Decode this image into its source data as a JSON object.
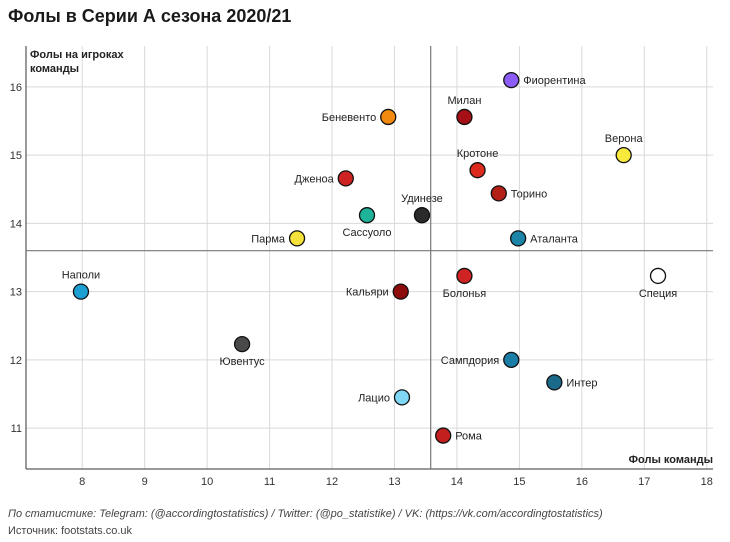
{
  "title": "Фолы в Серии А сезона 2020/21",
  "footnote": "По статистике: Telegram: (@accordingtostatistics) / Twitter: (@po_statistike) / VK: (https://vk.com/accordingtostatistics)",
  "source": "Источник: footstats.co.uk",
  "chart_data": {
    "type": "scatter",
    "title": "Фолы в Серии А сезона 2020/21",
    "xlabel": "Фолы команды",
    "ylabel_lines": [
      "Фолы на игроках",
      "команды"
    ],
    "xlim": [
      7.1,
      18.1
    ],
    "ylim": [
      10.4,
      16.6
    ],
    "xticks": [
      8,
      9,
      10,
      11,
      12,
      13,
      14,
      15,
      16,
      17,
      18
    ],
    "yticks": [
      11,
      12,
      13,
      14,
      15,
      16
    ],
    "xref": 13.58,
    "yref": 13.6,
    "grid": true,
    "points": [
      {
        "team": "Фиорентина",
        "x": 14.87,
        "y": 16.1,
        "color": "#8b5cf6",
        "label_pos": "right"
      },
      {
        "team": "Милан",
        "x": 14.12,
        "y": 15.56,
        "color": "#a50f15",
        "label_pos": "top"
      },
      {
        "team": "Беневенто",
        "x": 12.9,
        "y": 15.56,
        "color": "#f28a0f",
        "label_pos": "left"
      },
      {
        "team": "Верона",
        "x": 16.67,
        "y": 15.0,
        "color": "#f7ea3c",
        "label_pos": "top"
      },
      {
        "team": "Кротоне",
        "x": 14.33,
        "y": 14.78,
        "color": "#dc2a1f",
        "label_pos": "top"
      },
      {
        "team": "Дженоа",
        "x": 12.22,
        "y": 14.66,
        "color": "#cf2323",
        "label_pos": "left"
      },
      {
        "team": "Торино",
        "x": 14.67,
        "y": 14.44,
        "color": "#b32016",
        "label_pos": "right"
      },
      {
        "team": "Удинезе",
        "x": 13.44,
        "y": 14.12,
        "color": "#2b2b2b",
        "label_pos": "top"
      },
      {
        "team": "Сассуоло",
        "x": 12.56,
        "y": 14.12,
        "color": "#1fb39a",
        "label_pos": "bottom"
      },
      {
        "team": "Парма",
        "x": 11.44,
        "y": 13.78,
        "color": "#f5e23a",
        "label_pos": "left"
      },
      {
        "team": "Аталанта",
        "x": 14.98,
        "y": 13.78,
        "color": "#1b85a8",
        "label_pos": "right"
      },
      {
        "team": "Наполи",
        "x": 7.98,
        "y": 13.0,
        "color": "#1e9fd4",
        "label_pos": "top"
      },
      {
        "team": "Болонья",
        "x": 14.12,
        "y": 13.23,
        "color": "#cf2323",
        "label_pos": "bottom"
      },
      {
        "team": "Кальяри",
        "x": 13.1,
        "y": 13.0,
        "color": "#8c0b0b",
        "label_pos": "left"
      },
      {
        "team": "Специя",
        "x": 17.22,
        "y": 13.23,
        "color": "#ffffff",
        "label_pos": "bottom"
      },
      {
        "team": "Ювентус",
        "x": 10.56,
        "y": 12.23,
        "color": "#4a4a4a",
        "label_pos": "bottom"
      },
      {
        "team": "Сампдория",
        "x": 14.87,
        "y": 12.0,
        "color": "#1a7ea6",
        "label_pos": "left"
      },
      {
        "team": "Интер",
        "x": 15.56,
        "y": 11.67,
        "color": "#1c6a8a",
        "label_pos": "right"
      },
      {
        "team": "Лацио",
        "x": 13.12,
        "y": 11.45,
        "color": "#7fd6f5",
        "label_pos": "left"
      },
      {
        "team": "Рома",
        "x": 13.78,
        "y": 10.89,
        "color": "#c41f1f",
        "label_pos": "right"
      }
    ]
  }
}
